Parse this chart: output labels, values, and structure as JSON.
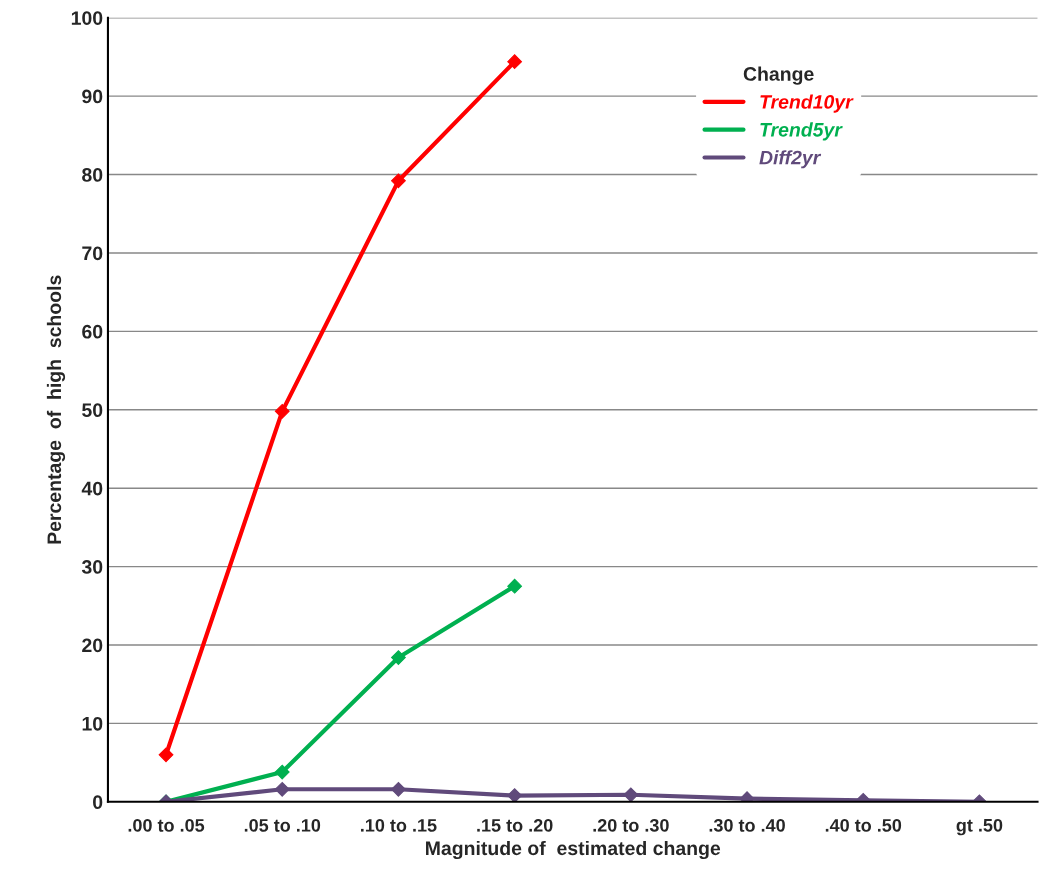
{
  "chart_data": {
    "type": "line",
    "xlabel": "Magnitude of  estimated change",
    "ylabel": "Percentage  of  high  schools",
    "legend_title": "Change",
    "categories": [
      ".00 to .05",
      ".05 to .10",
      ".10 to .15",
      ".15 to .20",
      ".20 to .30",
      ".30 to .40",
      ".40 to .50",
      "gt .50"
    ],
    "series": [
      {
        "name": "Trend10yr",
        "color": "#ff0000",
        "values": [
          6.0,
          49.8,
          79.2,
          94.4,
          null,
          null,
          null,
          null
        ]
      },
      {
        "name": "Trend5yr",
        "color": "#00b050",
        "values": [
          0.0,
          3.8,
          18.4,
          27.5,
          null,
          null,
          null,
          null
        ]
      },
      {
        "name": "Diff2yr",
        "color": "#604a7b",
        "values": [
          0.0,
          1.6,
          1.6,
          0.8,
          0.9,
          0.4,
          0.2,
          0.0
        ]
      }
    ],
    "ylim": [
      0,
      100
    ],
    "yticks": [
      0,
      10,
      20,
      30,
      40,
      50,
      60,
      70,
      80,
      90,
      100
    ],
    "grid": "y",
    "legend": "top right",
    "marker": "diamond",
    "line_style": "solid"
  }
}
